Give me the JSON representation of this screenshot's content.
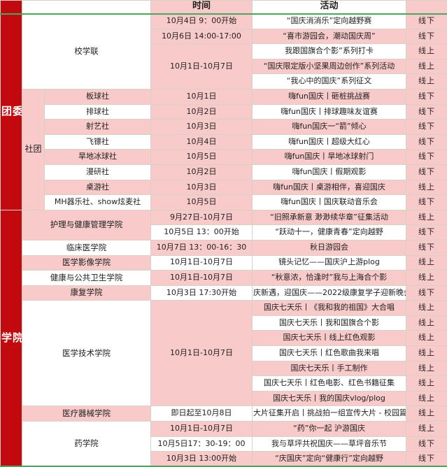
{
  "colors": {
    "accent_red": "#c00a10",
    "cell_pink": "#f8caca",
    "cell_white": "#ffffff",
    "grid_line": "#d6d2c8",
    "green_rule": "#4aa45c",
    "text": "#1f1f1f"
  },
  "header": {
    "cells": [
      {
        "text": "",
        "type": "red",
        "shade": "red"
      },
      {
        "text": "",
        "type": "org",
        "shade": "white",
        "colspan": 2
      },
      {
        "text": "时间",
        "type": "time-header",
        "shade": "pink"
      },
      {
        "text": "活动",
        "type": "activity-header",
        "shade": "white"
      },
      {
        "text": "",
        "type": "status-header",
        "shade": "pink"
      }
    ]
  },
  "rows": [
    {
      "cells": [
        {
          "text": "团委",
          "type": "red",
          "shade": "red",
          "rowspan": 13
        },
        {
          "text": "校学联",
          "type": "org",
          "shade": "white",
          "colspan": 2,
          "rowspan": 5
        },
        {
          "text": "10月4日 9：00开始",
          "type": "time",
          "shade": "pink"
        },
        {
          "text": "“国庆消消乐”定向越野赛",
          "type": "activity",
          "shade": "white"
        },
        {
          "text": "线下",
          "type": "status",
          "shade": "pink"
        }
      ]
    },
    {
      "cells": [
        {
          "text": "10月6日 14:00-17:00",
          "type": "time",
          "shade": "pink"
        },
        {
          "text": "“喜市游园会，潮动国庆周”",
          "type": "activity",
          "shade": "pink"
        },
        {
          "text": "线下",
          "type": "status",
          "shade": "pink"
        }
      ]
    },
    {
      "cells": [
        {
          "text": "10月1日-10月7日",
          "type": "time",
          "shade": "pink",
          "rowspan": 3
        },
        {
          "text": "我跟国旗合个影”系列打卡",
          "type": "activity",
          "shade": "white"
        },
        {
          "text": "线上",
          "type": "status",
          "shade": "pink"
        }
      ]
    },
    {
      "cells": [
        {
          "text": "“国庆限定版小坚果周边创作”系列活动",
          "type": "activity",
          "shade": "pink"
        },
        {
          "text": "线上",
          "type": "status",
          "shade": "pink"
        }
      ]
    },
    {
      "cells": [
        {
          "text": "“我心中的国庆”系列征文",
          "type": "activity",
          "shade": "white"
        },
        {
          "text": "线上",
          "type": "status",
          "shade": "pink"
        }
      ]
    },
    {
      "cells": [
        {
          "text": "社团",
          "type": "subgroup",
          "shade": "pink",
          "rowspan": 8
        },
        {
          "text": "板球社",
          "type": "club",
          "shade": "pink"
        },
        {
          "text": "10月1日",
          "type": "time",
          "shade": "pink"
        },
        {
          "text": "嗨fun国庆丨砸桩挑战赛",
          "type": "activity",
          "shade": "pink"
        },
        {
          "text": "线下",
          "type": "status",
          "shade": "pink"
        }
      ]
    },
    {
      "cells": [
        {
          "text": "排球社",
          "type": "club",
          "shade": "white"
        },
        {
          "text": "10月2日",
          "type": "time",
          "shade": "pink"
        },
        {
          "text": "嗨fun国庆丨排球趣味友谊赛",
          "type": "activity",
          "shade": "white"
        },
        {
          "text": "线下",
          "type": "status",
          "shade": "pink"
        }
      ]
    },
    {
      "cells": [
        {
          "text": "射艺社",
          "type": "club",
          "shade": "pink"
        },
        {
          "text": "10月3日",
          "type": "time",
          "shade": "pink"
        },
        {
          "text": "嗨fun国庆一“箭”倾心",
          "type": "activity",
          "shade": "pink"
        },
        {
          "text": "线下",
          "type": "status",
          "shade": "pink"
        }
      ]
    },
    {
      "cells": [
        {
          "text": "飞镖社",
          "type": "club",
          "shade": "white"
        },
        {
          "text": "10月4日",
          "type": "time",
          "shade": "pink"
        },
        {
          "text": "嗨fun国庆丨超级大红心",
          "type": "activity",
          "shade": "white"
        },
        {
          "text": "线下",
          "type": "status",
          "shade": "pink"
        }
      ]
    },
    {
      "cells": [
        {
          "text": "旱地冰球社",
          "type": "club",
          "shade": "pink"
        },
        {
          "text": "10月5日",
          "type": "time",
          "shade": "pink"
        },
        {
          "text": "嗨fun国庆丨旱地冰球射门",
          "type": "activity",
          "shade": "pink"
        },
        {
          "text": "线下",
          "type": "status",
          "shade": "pink"
        }
      ]
    },
    {
      "cells": [
        {
          "text": "漫研社",
          "type": "club",
          "shade": "white"
        },
        {
          "text": "10月2日",
          "type": "time",
          "shade": "pink"
        },
        {
          "text": "嗨fun国庆丨假期观影",
          "type": "activity",
          "shade": "white"
        },
        {
          "text": "线下",
          "type": "status",
          "shade": "pink"
        }
      ]
    },
    {
      "cells": [
        {
          "text": "桌游社",
          "type": "club",
          "shade": "pink"
        },
        {
          "text": "10月3日",
          "type": "time",
          "shade": "pink"
        },
        {
          "text": "嗨fun国庆丨桌游相伴，喜迎国庆",
          "type": "activity",
          "shade": "pink"
        },
        {
          "text": "线上",
          "type": "status",
          "shade": "pink"
        }
      ]
    },
    {
      "cells": [
        {
          "text": "MH器乐社、show炫麦社",
          "type": "club",
          "shade": "white"
        },
        {
          "text": "10月5日",
          "type": "time",
          "shade": "pink"
        },
        {
          "text": "嗨fun国庆丨国庆联动音乐会",
          "type": "activity",
          "shade": "white"
        },
        {
          "text": "线下",
          "type": "status",
          "shade": "pink"
        }
      ]
    },
    {
      "cells": [
        {
          "text": "学院",
          "type": "red",
          "shade": "red",
          "rowspan": 17
        },
        {
          "text": "护理与健康管理学院",
          "type": "org",
          "shade": "pink",
          "colspan": 2,
          "rowspan": 2
        },
        {
          "text": "9月27日-10月7日",
          "type": "time",
          "shade": "pink"
        },
        {
          "text": "“旧照承新意 渺渺续华章”征集活动",
          "type": "activity",
          "shade": "pink"
        },
        {
          "text": "线上",
          "type": "status",
          "shade": "pink"
        }
      ]
    },
    {
      "cells": [
        {
          "text": "10月5日 13：00开始",
          "type": "time",
          "shade": "white"
        },
        {
          "text": "“跃动十一，健康青春”定向越野",
          "type": "activity",
          "shade": "white"
        },
        {
          "text": "线下",
          "type": "status",
          "shade": "pink"
        }
      ]
    },
    {
      "cells": [
        {
          "text": "临床医学院",
          "type": "org",
          "shade": "white",
          "colspan": 2
        },
        {
          "text": "10月7日 13：00-16：30",
          "type": "time",
          "shade": "pink"
        },
        {
          "text": "秋日游园会",
          "type": "activity",
          "shade": "pink"
        },
        {
          "text": "线下",
          "type": "status",
          "shade": "pink"
        }
      ]
    },
    {
      "cells": [
        {
          "text": "医学影像学院",
          "type": "org",
          "shade": "pink",
          "colspan": 2
        },
        {
          "text": "10月1日-10月7日",
          "type": "time",
          "shade": "white"
        },
        {
          "text": "镜头记忆——国庆沪上游plog",
          "type": "activity",
          "shade": "white"
        },
        {
          "text": "线上",
          "type": "status",
          "shade": "pink"
        }
      ]
    },
    {
      "cells": [
        {
          "text": "健康与公共卫生学院",
          "type": "org",
          "shade": "white",
          "colspan": 2
        },
        {
          "text": "10月1日-10月7日",
          "type": "time",
          "shade": "pink"
        },
        {
          "text": "“秋意浓，恰逢时”我与上海合个影",
          "type": "activity",
          "shade": "pink"
        },
        {
          "text": "线上",
          "type": "status",
          "shade": "pink"
        }
      ]
    },
    {
      "cells": [
        {
          "text": "康复学院",
          "type": "org",
          "shade": "pink",
          "colspan": 2
        },
        {
          "text": "10月3日 17:30开始",
          "type": "time",
          "shade": "white"
        },
        {
          "text": "庆新遇，迎国庆——2022级康复学子迎新晚会",
          "type": "activity",
          "shade": "white"
        },
        {
          "text": "线下",
          "type": "status",
          "shade": "pink"
        }
      ]
    },
    {
      "cells": [
        {
          "text": "医学技术学院",
          "type": "org",
          "shade": "white",
          "colspan": 2,
          "rowspan": 7
        },
        {
          "text": "10月1日-10月7日",
          "type": "time",
          "shade": "pink",
          "rowspan": 7
        },
        {
          "text": "国庆七天乐丨《我和我的祖国》大合唱",
          "type": "activity",
          "shade": "pink"
        },
        {
          "text": "线上",
          "type": "status",
          "shade": "pink"
        }
      ]
    },
    {
      "cells": [
        {
          "text": "国庆七天乐丨我和国旗合个影",
          "type": "activity",
          "shade": "white"
        },
        {
          "text": "线上",
          "type": "status",
          "shade": "pink"
        }
      ]
    },
    {
      "cells": [
        {
          "text": "国庆七天乐丨线上红色观影",
          "type": "activity",
          "shade": "pink"
        },
        {
          "text": "线上",
          "type": "status",
          "shade": "pink"
        }
      ]
    },
    {
      "cells": [
        {
          "text": "国庆七天乐丨红色歌曲我来唱",
          "type": "activity",
          "shade": "white"
        },
        {
          "text": "线上",
          "type": "status",
          "shade": "pink"
        }
      ]
    },
    {
      "cells": [
        {
          "text": "国庆七天乐丨手工制作",
          "type": "activity",
          "shade": "pink"
        },
        {
          "text": "线上",
          "type": "status",
          "shade": "pink"
        }
      ]
    },
    {
      "cells": [
        {
          "text": "国庆七天乐丨红色电影、红色书籍征集",
          "type": "activity",
          "shade": "white"
        },
        {
          "text": "线上",
          "type": "status",
          "shade": "pink"
        }
      ]
    },
    {
      "cells": [
        {
          "text": "国庆七天乐丨我的国庆vlog/plog",
          "type": "activity",
          "shade": "pink"
        },
        {
          "text": "线上",
          "type": "status",
          "shade": "pink"
        }
      ]
    },
    {
      "cells": [
        {
          "text": "医疗器械学院",
          "type": "org",
          "shade": "pink",
          "colspan": 2
        },
        {
          "text": "即日起至10月8日",
          "type": "time",
          "shade": "white"
        },
        {
          "text": "大片征集开启丨挑战拍一组宣传大片 - 校园篇",
          "type": "activity",
          "shade": "white"
        },
        {
          "text": "线上",
          "type": "status",
          "shade": "pink"
        }
      ]
    },
    {
      "cells": [
        {
          "text": "药学院",
          "type": "org",
          "shade": "white",
          "colspan": 2,
          "rowspan": 3
        },
        {
          "text": "10月1日-10月7日",
          "type": "time",
          "shade": "pink"
        },
        {
          "text": "“药”你一起 沪游国庆",
          "type": "activity",
          "shade": "pink"
        },
        {
          "text": "线上",
          "type": "status",
          "shade": "pink"
        }
      ]
    },
    {
      "cells": [
        {
          "text": "10月5日17：30-19：00",
          "type": "time",
          "shade": "white"
        },
        {
          "text": "我与草坪共祝国庆——草坪音乐节",
          "type": "activity",
          "shade": "white"
        },
        {
          "text": "线下",
          "type": "status",
          "shade": "pink"
        }
      ]
    },
    {
      "cells": [
        {
          "text": "10月3日 13:00开始",
          "type": "time",
          "shade": "pink"
        },
        {
          "text": "“庆国庆”定向“健康行”定向越野",
          "type": "activity",
          "shade": "pink"
        },
        {
          "text": "线下",
          "type": "status",
          "shade": "pink"
        }
      ]
    }
  ]
}
